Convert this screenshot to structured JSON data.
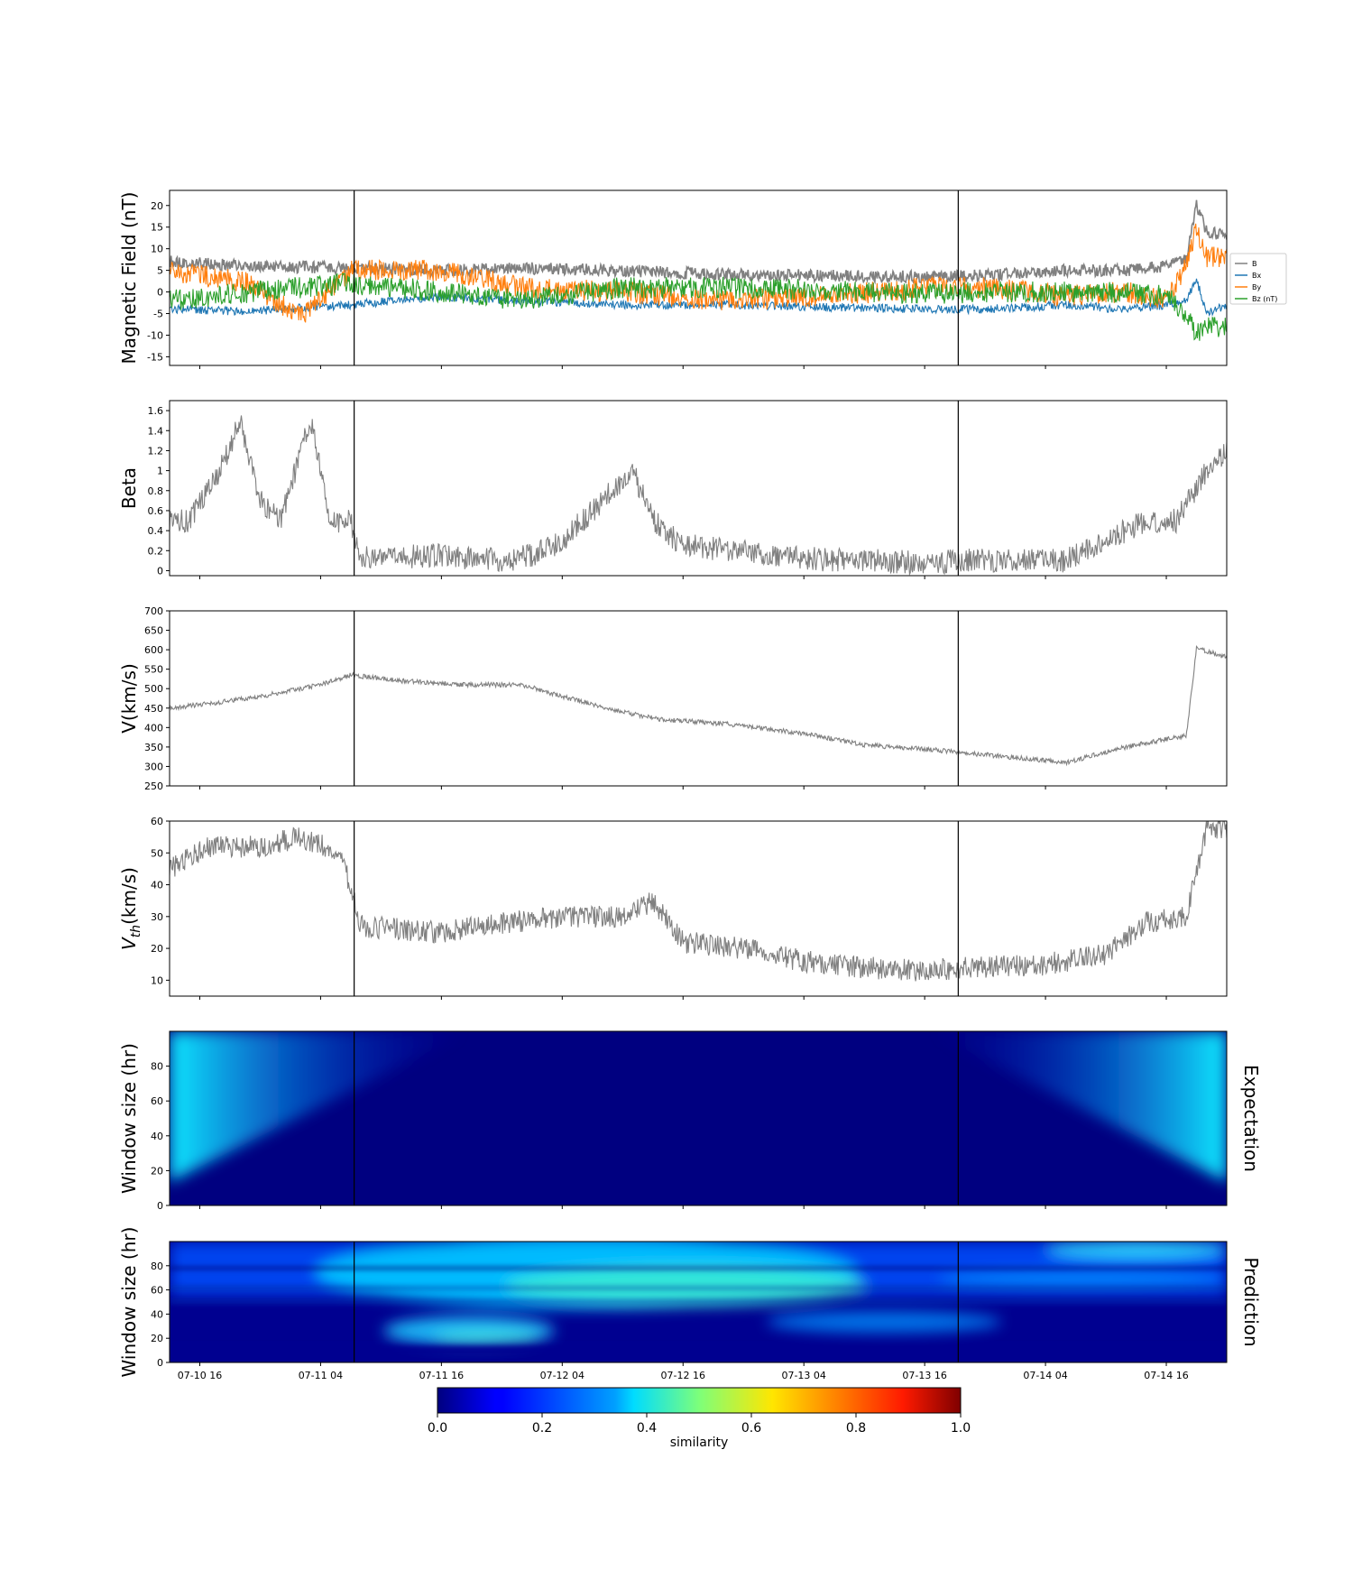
{
  "chart_data": {
    "type": "line",
    "x_range": [
      "07-10 13:00",
      "07-14 22:00"
    ],
    "x_ticks": [
      "07-10 16",
      "07-11 04",
      "07-11 16",
      "07-12 04",
      "07-12 16",
      "07-13 04",
      "07-13 16",
      "07-14 04",
      "07-14 16"
    ],
    "event_markers": [
      "07-11 07:20",
      "07-13 19:20"
    ],
    "panels": [
      {
        "id": "magnetic",
        "ylabel": "Magnetic Field (nT)",
        "ylim": [
          -17,
          23.5
        ],
        "yticks": [
          -15,
          -10,
          -5,
          0,
          5,
          10,
          15,
          20
        ],
        "legend": {
          "position": "right",
          "entries": [
            "B",
            "Bx",
            "By",
            "Bz (nT)"
          ]
        },
        "series": [
          {
            "name": "B",
            "color": "#808080",
            "x": [
              "07-10 13",
              "07-10 21",
              "07-11 07",
              "07-11 16",
              "07-12 00",
              "07-12 10",
              "07-12 20",
              "07-13 06",
              "07-13 16",
              "07-13 22",
              "07-14 06",
              "07-14 12",
              "07-14 16",
              "07-14 18",
              "07-14 19",
              "07-14 20",
              "07-14 22"
            ],
            "y": [
              7,
              6,
              5.5,
              5,
              5.5,
              5,
              4,
              3.8,
              3.5,
              3.8,
              5,
              5,
              6,
              8,
              20,
              14,
              13
            ]
          },
          {
            "name": "Bx",
            "color": "#1f77b4",
            "x": [
              "07-10 13",
              "07-10 21",
              "07-11 07",
              "07-11 16",
              "07-12 00",
              "07-12 10",
              "07-12 20",
              "07-13 06",
              "07-13 16",
              "07-13 22",
              "07-14 06",
              "07-14 12",
              "07-14 16",
              "07-14 18",
              "07-14 19",
              "07-14 20",
              "07-14 22"
            ],
            "y": [
              -4,
              -4.5,
              -3,
              -1,
              -2,
              -3,
              -3,
              -3.5,
              -4,
              -4,
              -3,
              -4,
              -3,
              -2,
              3,
              -5,
              -3
            ]
          },
          {
            "name": "By",
            "color": "#ff7f0e",
            "x": [
              "07-10 13",
              "07-10 21",
              "07-11 02",
              "07-11 07",
              "07-11 16",
              "07-12 00",
              "07-12 10",
              "07-12 20",
              "07-13 06",
              "07-13 16",
              "07-13 22",
              "07-14 06",
              "07-14 12",
              "07-14 16",
              "07-14 18",
              "07-14 19",
              "07-14 20",
              "07-14 22"
            ],
            "y": [
              5,
              2,
              -6,
              5,
              5,
              1,
              0,
              -2,
              -1,
              1,
              1,
              -1,
              0,
              -2,
              6,
              15,
              8,
              8
            ]
          },
          {
            "name": "Bz (nT)",
            "color": "#2ca02c",
            "x": [
              "07-10 13",
              "07-10 21",
              "07-11 07",
              "07-11 16",
              "07-12 00",
              "07-12 10",
              "07-12 20",
              "07-13 06",
              "07-13 16",
              "07-13 22",
              "07-14 06",
              "07-14 12",
              "07-14 16",
              "07-14 18",
              "07-14 19",
              "07-14 20",
              "07-14 22"
            ],
            "y": [
              -2,
              0,
              2,
              0,
              -2,
              1,
              1,
              0.5,
              -0.5,
              0,
              0,
              0,
              -1,
              -5,
              -10,
              -8,
              -8
            ]
          }
        ]
      },
      {
        "id": "beta",
        "ylabel": "Beta",
        "ylim": [
          -0.05,
          1.7
        ],
        "yticks": [
          0.0,
          0.2,
          0.4,
          0.6,
          0.8,
          1.0,
          1.2,
          1.4,
          1.6
        ],
        "series": [
          {
            "name": "",
            "color": "#808080",
            "x": [
              "07-10 13",
              "07-10 15",
              "07-10 18",
              "07-10 20",
              "07-10 22",
              "07-11 00",
              "07-11 03",
              "07-11 05",
              "07-11 07",
              "07-11 08",
              "07-11 16",
              "07-11 22",
              "07-12 01",
              "07-12 04",
              "07-12 08",
              "07-12 11",
              "07-12 13",
              "07-12 16",
              "07-12 22",
              "07-13 04",
              "07-13 10",
              "07-13 16",
              "07-13 20",
              "07-14 02",
              "07-14 06",
              "07-14 10",
              "07-14 14",
              "07-14 17",
              "07-14 20",
              "07-14 22"
            ],
            "y": [
              0.5,
              0.5,
              1.0,
              1.5,
              0.7,
              0.5,
              1.5,
              0.5,
              0.5,
              0.13,
              0.15,
              0.1,
              0.15,
              0.3,
              0.7,
              1.0,
              0.5,
              0.25,
              0.2,
              0.12,
              0.1,
              0.08,
              0.1,
              0.1,
              0.1,
              0.3,
              0.5,
              0.5,
              1.0,
              1.2
            ]
          }
        ]
      },
      {
        "id": "velocity",
        "ylabel": "V(km/s)",
        "ylim": [
          250,
          700
        ],
        "yticks": [
          250,
          300,
          350,
          400,
          450,
          500,
          550,
          600,
          650,
          700
        ],
        "series": [
          {
            "name": "",
            "color": "#808080",
            "x": [
              "07-10 13",
              "07-10 18",
              "07-10 22",
              "07-11 04",
              "07-11 07",
              "07-11 12",
              "07-11 18",
              "07-12 00",
              "07-12 04",
              "07-12 10",
              "07-12 14",
              "07-12 20",
              "07-13 04",
              "07-13 10",
              "07-13 16",
              "07-13 22",
              "07-14 06",
              "07-14 12",
              "07-14 18",
              "07-14 19",
              "07-14 22"
            ],
            "y": [
              450,
              465,
              480,
              510,
              535,
              520,
              510,
              510,
              480,
              440,
              420,
              410,
              385,
              355,
              345,
              330,
              310,
              350,
              380,
              605,
              580
            ]
          }
        ]
      },
      {
        "id": "thermal",
        "ylabel": "V_th(km/s)",
        "ylim": [
          5,
          60
        ],
        "yticks": [
          10,
          20,
          30,
          40,
          50,
          60
        ],
        "series": [
          {
            "name": "",
            "color": "#808080",
            "x": [
              "07-10 13",
              "07-10 17",
              "07-10 22",
              "07-11 02",
              "07-11 06",
              "07-11 08",
              "07-11 16",
              "07-11 22",
              "07-12 04",
              "07-12 10",
              "07-12 13",
              "07-12 16",
              "07-12 22",
              "07-13 04",
              "07-13 10",
              "07-13 16",
              "07-13 20",
              "07-14 04",
              "07-14 10",
              "07-14 14",
              "07-14 18",
              "07-14 20",
              "07-14 22"
            ],
            "y": [
              45,
              52,
              52,
              55,
              50,
              27,
              25,
              28,
              30,
              30,
              35,
              22,
              20,
              16,
              14,
              13,
              14,
              15,
              18,
              28,
              30,
              58,
              58
            ]
          }
        ]
      },
      {
        "id": "expectation",
        "type": "heatmap",
        "ylabel": "Window size (hr)",
        "side_label": "Expectation",
        "ylim": [
          0,
          100
        ],
        "yticks": [
          0,
          20,
          40,
          60,
          80
        ]
      },
      {
        "id": "prediction",
        "type": "heatmap",
        "ylabel": "Window size (hr)",
        "side_label": "Prediction",
        "ylim": [
          0,
          100
        ],
        "yticks": [
          0,
          20,
          40,
          60,
          80
        ]
      }
    ],
    "colorbar": {
      "label": "similarity",
      "range": [
        0.0,
        1.0
      ],
      "ticks": [
        "0.0",
        "0.2",
        "0.4",
        "0.6",
        "0.8",
        "1.0"
      ],
      "colormap": "jet"
    }
  }
}
